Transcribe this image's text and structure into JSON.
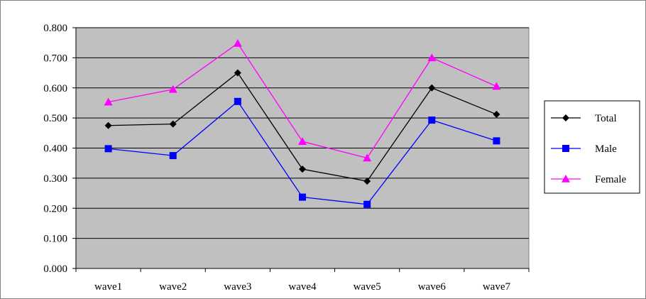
{
  "chart_data": {
    "type": "line",
    "title": "",
    "xlabel": "",
    "ylabel": "",
    "categories": [
      "wave1",
      "wave2",
      "wave3",
      "wave4",
      "wave5",
      "wave6",
      "wave7"
    ],
    "ylim": [
      0,
      0.8
    ],
    "yticks": [
      "0.000",
      "0.100",
      "0.200",
      "0.300",
      "0.400",
      "0.500",
      "0.600",
      "0.700",
      "0.800"
    ],
    "grid": true,
    "legend": "right",
    "series": [
      {
        "name": "Total",
        "color": "#000000",
        "marker": "diamond",
        "values": [
          0.475,
          0.48,
          0.65,
          0.33,
          0.29,
          0.6,
          0.512
        ]
      },
      {
        "name": "Male",
        "color": "#0000ff",
        "marker": "square",
        "values": [
          0.398,
          0.375,
          0.555,
          0.237,
          0.213,
          0.493,
          0.424
        ]
      },
      {
        "name": "Female",
        "color": "#ff00ff",
        "marker": "triangle",
        "values": [
          0.553,
          0.595,
          0.748,
          0.422,
          0.367,
          0.7,
          0.605
        ]
      }
    ]
  }
}
